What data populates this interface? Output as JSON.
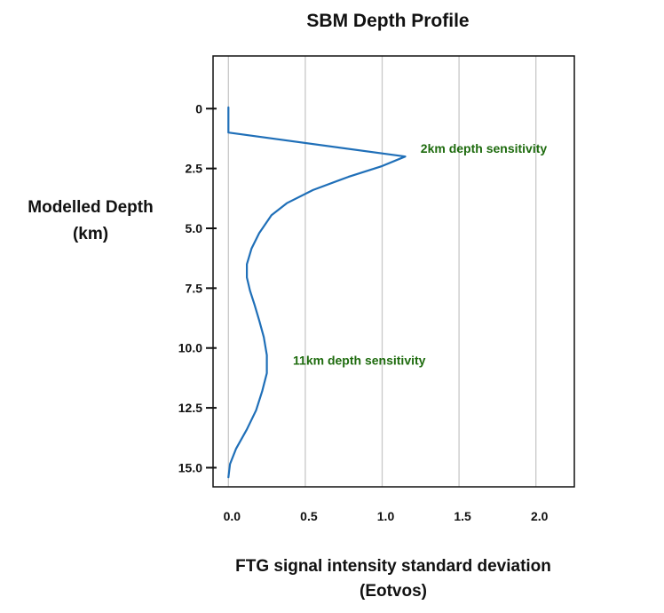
{
  "chart_data": {
    "type": "line",
    "title": "SBM Depth Profile",
    "xlabel_line1": "FTG signal intensity standard deviation",
    "xlabel_line2": "(Eotvos)",
    "ylabel_line1": "Modelled Depth",
    "ylabel_line2": "(km)",
    "xlim": [
      -0.1,
      2.25
    ],
    "ylim": [
      -2.2,
      15.8
    ],
    "y_inverted": true,
    "grid": {
      "vertical": true,
      "horizontal": false
    },
    "x_ticks": [
      0.0,
      0.5,
      1.0,
      1.5,
      2.0
    ],
    "x_tick_labels": [
      "0.0",
      "0.5",
      "1.0",
      "1.5",
      "2.0"
    ],
    "y_ticks": [
      0,
      2.5,
      5.0,
      7.5,
      10.0,
      12.5,
      15.0
    ],
    "y_tick_labels": [
      "0",
      "2.5",
      "5.0",
      "7.5",
      "10.0",
      "12.5",
      "15.0"
    ],
    "series": [
      {
        "color": "#1f6fb8",
        "points": [
          [
            0.0,
            -0.05
          ],
          [
            0.0,
            0.5
          ],
          [
            0.0,
            1.0
          ],
          [
            1.15,
            2.0
          ],
          [
            1.0,
            2.4
          ],
          [
            0.78,
            2.85
          ],
          [
            0.55,
            3.4
          ],
          [
            0.38,
            3.95
          ],
          [
            0.28,
            4.45
          ],
          [
            0.2,
            5.2
          ],
          [
            0.15,
            5.85
          ],
          [
            0.12,
            6.5
          ],
          [
            0.12,
            7.05
          ],
          [
            0.14,
            7.6
          ],
          [
            0.17,
            8.2
          ],
          [
            0.2,
            8.85
          ],
          [
            0.23,
            9.55
          ],
          [
            0.25,
            10.3
          ],
          [
            0.25,
            11.05
          ],
          [
            0.22,
            11.8
          ],
          [
            0.18,
            12.6
          ],
          [
            0.12,
            13.4
          ],
          [
            0.05,
            14.2
          ],
          [
            0.01,
            14.85
          ],
          [
            0.0,
            15.4
          ]
        ]
      }
    ],
    "annotations": [
      {
        "text": "2km depth sensitivity",
        "x": 1.25,
        "y": 1.85,
        "color": "#1e6b0e"
      },
      {
        "text": "11km depth sensitivity",
        "x": 0.42,
        "y": 10.7,
        "color": "#1e6b0e"
      }
    ]
  }
}
